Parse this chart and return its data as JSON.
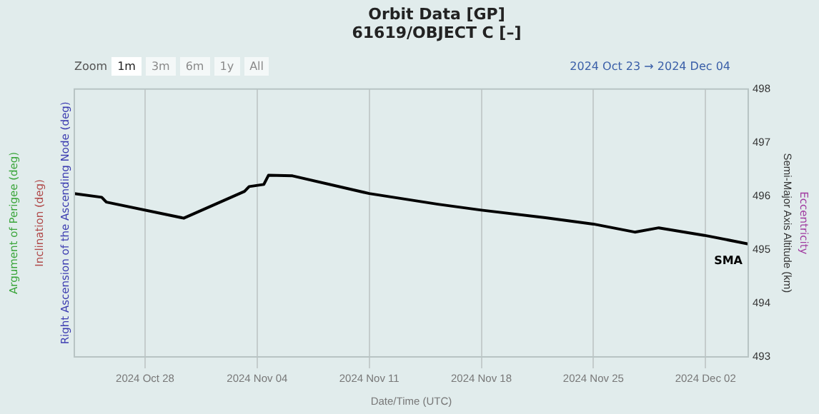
{
  "chart_data": {
    "type": "line",
    "title": "Orbit Data [GP]",
    "subtitle": "61619/OBJECT C [–]",
    "xlabel": "Date/Time (UTC)",
    "ylabel": "Right Ascension of the Ascending Node (deg)",
    "y3label": "Inclination (deg)",
    "y2label": "Semi-Major Axis Altitude (km)",
    "annotations": [
      "Zoom",
      "1m",
      "3m",
      "6m",
      "1y",
      "All",
      "2024 Oct 23",
      "→",
      "2024 Dec 04",
      "Argument of Perigee (deg)",
      "Eccentricity"
    ],
    "x": [
      "2024-10-23T14:00",
      "2024-10-25T07:00",
      "2024-10-25T14:00",
      "2024-10-30T10:00",
      "2024-11-03T05:00",
      "2024-11-03T12:00",
      "2024-11-04T10:00",
      "2024-11-04T17:00",
      "2024-11-06T05:00",
      "2024-11-11T00:00",
      "2024-11-15T07:00",
      "2024-11-18T00:00",
      "2024-11-22T00:00",
      "2024-11-25T00:00",
      "2024-11-27T14:00",
      "2024-11-29T02:00",
      "2024-12-01T22:00",
      "2024-12-04T16:00"
    ],
    "series": [
      {
        "name": "SMA",
        "color": "#000000",
        "axis": "y2",
        "values": [
          496.05,
          495.98,
          495.89,
          495.59,
          496.09,
          496.18,
          496.22,
          496.39,
          496.38,
          496.05,
          495.85,
          495.74,
          495.6,
          495.48,
          495.33,
          495.41,
          495.27,
          495.11
        ]
      }
    ],
    "xlim": [
      "2024-10-23T14:00",
      "2024-12-04T16:00"
    ],
    "xticks": [
      {
        "value": "2024-10-28",
        "label": "2024 Oct 28"
      },
      {
        "value": "2024-11-04",
        "label": "2024 Nov 04"
      },
      {
        "value": "2024-11-11",
        "label": "2024 Nov 11"
      },
      {
        "value": "2024-11-18",
        "label": "2024 Nov 18"
      },
      {
        "value": "2024-11-25",
        "label": "2024 Nov 25"
      },
      {
        "value": "2024-12-02",
        "label": "2024 Dec 02"
      }
    ],
    "y2lim": [
      493,
      498
    ],
    "y2ticks": [
      493,
      494,
      495,
      496,
      497,
      498
    ],
    "grid": "x",
    "legend": false,
    "marker": "none",
    "line_style": "solid"
  }
}
